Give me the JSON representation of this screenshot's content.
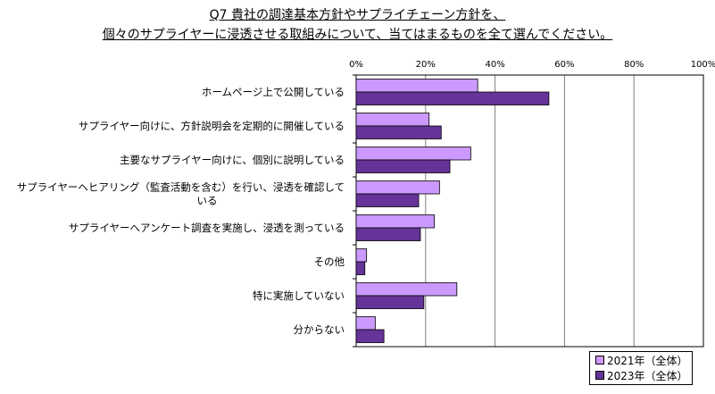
{
  "chart_data": {
    "type": "bar",
    "orientation": "horizontal",
    "title_lines": [
      "Q7 貴社の調達基本方針やサプライチェーン方針を、",
      "個々のサプライヤーに浸透させる取組みについて、当てはまるものを全て選んでください。"
    ],
    "categories": [
      [
        "ホームページ上で公開している"
      ],
      [
        "サプライヤー向けに、方針説明会を定期的に開催している"
      ],
      [
        "主要なサプライヤー向けに、個別に説明している"
      ],
      [
        "サプライヤーへヒアリング（監査活動を含む）を行い、浸透を確認して",
        "いる"
      ],
      [
        "サプライヤーへアンケート調査を実施し、浸透を測っている"
      ],
      [
        "その他"
      ],
      [
        "特に実施していない"
      ],
      [
        "分からない"
      ]
    ],
    "series": [
      {
        "name": "2021年（全体）",
        "color": "#cc99ff",
        "values": [
          35,
          21,
          33,
          24,
          22.5,
          3,
          29,
          5.5
        ]
      },
      {
        "name": "2023年（全体）",
        "color": "#663399",
        "values": [
          55.5,
          24.5,
          27,
          18,
          18.5,
          2.5,
          19.5,
          8
        ]
      }
    ],
    "x_ticks": [
      "0%",
      "20%",
      "40%",
      "60%",
      "80%",
      "100%"
    ],
    "xlim": [
      0,
      100
    ],
    "grid": true,
    "legend_position": "bottom-right"
  }
}
